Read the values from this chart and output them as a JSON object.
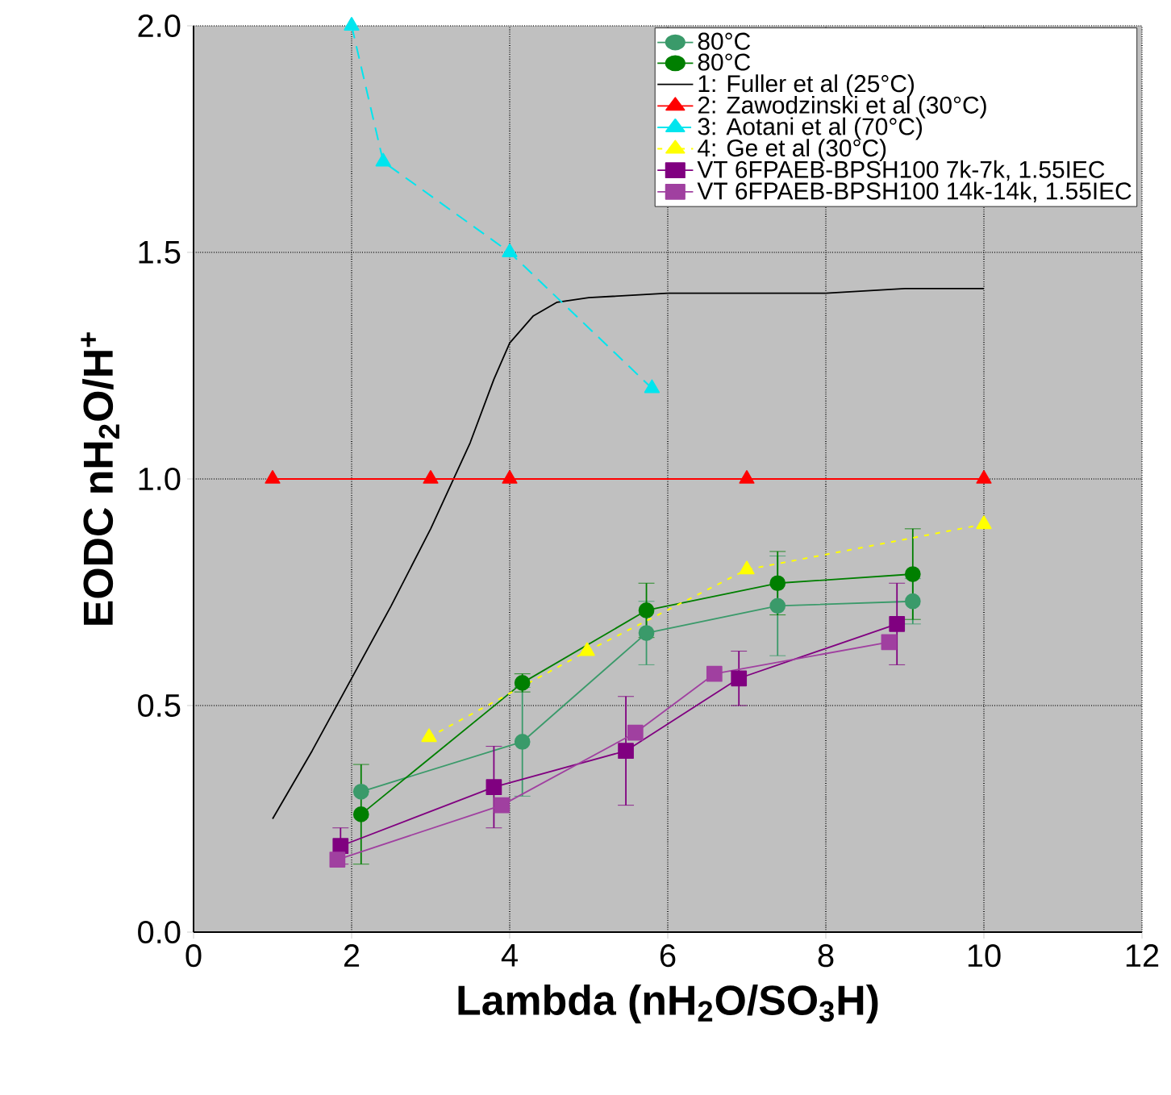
{
  "chart_data": {
    "type": "line",
    "xlabel": "Lambda (nH$_{2}$O/SO$_{3}$H)",
    "ylabel": "EODC  nH$_{2}$O/H$^{+}$",
    "xlim": [
      0,
      12
    ],
    "xticks": [
      0,
      2,
      4,
      6,
      8,
      10,
      12
    ],
    "ylim": [
      0,
      2
    ],
    "yticks": [
      {
        "value": 0,
        "label": "0.0"
      },
      {
        "value": 0.5,
        "label": "0.5"
      },
      {
        "value": 1,
        "label": "1.0"
      },
      {
        "value": 1.5,
        "label": "1.5"
      },
      {
        "value": 2,
        "label": "2.0"
      }
    ],
    "grid": true,
    "legend": "top right",
    "series": [
      {
        "name": "80°C",
        "color": "#3a9a6a",
        "marker": "circle",
        "line_style": "solid",
        "x": [
          2.12,
          4.16,
          5.73,
          7.39,
          9.1
        ],
        "values": [
          0.31,
          0.42,
          0.66,
          0.72,
          0.73
        ],
        "errors": [
          null,
          0.12,
          0.07,
          0.11,
          0.05
        ]
      },
      {
        "name": "80°C",
        "color": "#007f00",
        "marker": "circle",
        "line_style": "solid",
        "x": [
          2.12,
          4.16,
          5.73,
          7.39,
          9.1
        ],
        "values": [
          0.26,
          0.55,
          0.71,
          0.77,
          0.79
        ],
        "errors": [
          0.11,
          0.02,
          0.06,
          0.07,
          0.1
        ]
      },
      {
        "name": "1: Fuller et al (25°C)",
        "color": "#000000",
        "marker": "none",
        "line_style": "solid",
        "x": [
          1,
          1.5,
          2,
          2.5,
          3,
          3.5,
          3.8,
          4,
          4.3,
          4.6,
          5,
          6,
          7,
          8,
          9,
          10
        ],
        "values": [
          0.25,
          0.4,
          0.56,
          0.72,
          0.89,
          1.08,
          1.22,
          1.3,
          1.36,
          1.39,
          1.4,
          1.41,
          1.41,
          1.41,
          1.42,
          1.42
        ]
      },
      {
        "name": "2: Zawodzinski et al (30°C)",
        "color": "#ff0000",
        "marker": "triangle",
        "line_style": "solid",
        "x": [
          1,
          3,
          4,
          7,
          10
        ],
        "values": [
          1.0,
          1.0,
          1.0,
          1.0,
          1.0
        ]
      },
      {
        "name": "3: Aotani et al (70°C)",
        "color": "#00e5ee",
        "marker": "triangle",
        "line_style": "dashed",
        "x": [
          2,
          2.4,
          4,
          5.8
        ],
        "values": [
          2.0,
          1.7,
          1.5,
          1.2
        ]
      },
      {
        "name": "4: Ge et al (30°C)",
        "color": "#ffff00",
        "marker": "triangle",
        "line_style": "dotted",
        "x": [
          2.98,
          4.98,
          7.0,
          10
        ],
        "values": [
          0.43,
          0.62,
          0.8,
          0.9
        ]
      },
      {
        "name": "VT 6FPAEB-BPSH100 7k-7k, 1.55IEC",
        "color": "#800080",
        "marker": "square",
        "line_style": "solid",
        "x": [
          1.86,
          3.8,
          5.47,
          6.9,
          8.9
        ],
        "values": [
          0.19,
          0.32,
          0.4,
          0.56,
          0.68
        ],
        "errors": [
          0.04,
          0.09,
          0.12,
          0.06,
          0.09
        ]
      },
      {
        "name": "VT 6FPAEB-BPSH100 14k-14k, 1.55IEC",
        "color": "#a040a0",
        "marker": "square",
        "line_style": "solid",
        "x": [
          1.82,
          3.9,
          5.59,
          6.59,
          8.8
        ],
        "values": [
          0.16,
          0.28,
          0.44,
          0.57,
          0.64
        ]
      }
    ]
  }
}
